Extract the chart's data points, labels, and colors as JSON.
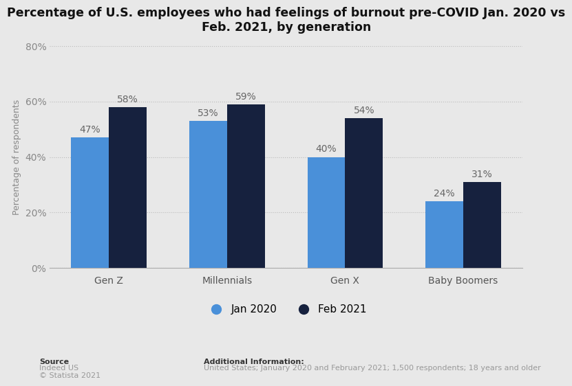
{
  "title": "Percentage of U.S. employees who had feelings of burnout pre-COVID Jan. 2020 vs\nFeb. 2021, by generation",
  "categories": [
    "Gen Z",
    "Millennials",
    "Gen X",
    "Baby Boomers"
  ],
  "jan2020_values": [
    0.47,
    0.53,
    0.4,
    0.24
  ],
  "feb2021_values": [
    0.58,
    0.59,
    0.54,
    0.31
  ],
  "jan2020_labels": [
    "47%",
    "53%",
    "40%",
    "24%"
  ],
  "feb2021_labels": [
    "58%",
    "59%",
    "54%",
    "31%"
  ],
  "color_jan2020": "#4A90D9",
  "color_feb2021": "#16213E",
  "ylabel": "Percentage of respondents",
  "ylim": [
    0,
    0.8
  ],
  "yticks": [
    0,
    0.2,
    0.4,
    0.6,
    0.8
  ],
  "ytick_labels": [
    "0%",
    "20%",
    "40%",
    "60%",
    "80%"
  ],
  "background_color": "#E8E8E8",
  "plot_bg_color": "#E8E8E8",
  "legend_jan2020": "Jan 2020",
  "legend_feb2021": "Feb 2021",
  "source_label": "Source",
  "source_body": "Indeed US\n© Statista 2021",
  "additional_info_label": "Additional Information:",
  "additional_info_body": "United States; January 2020 and February 2021; 1,500 respondents; 18 years and older",
  "bar_width": 0.32,
  "title_fontsize": 12.5,
  "label_fontsize": 9,
  "tick_fontsize": 10,
  "legend_fontsize": 11,
  "annotation_fontsize": 10
}
